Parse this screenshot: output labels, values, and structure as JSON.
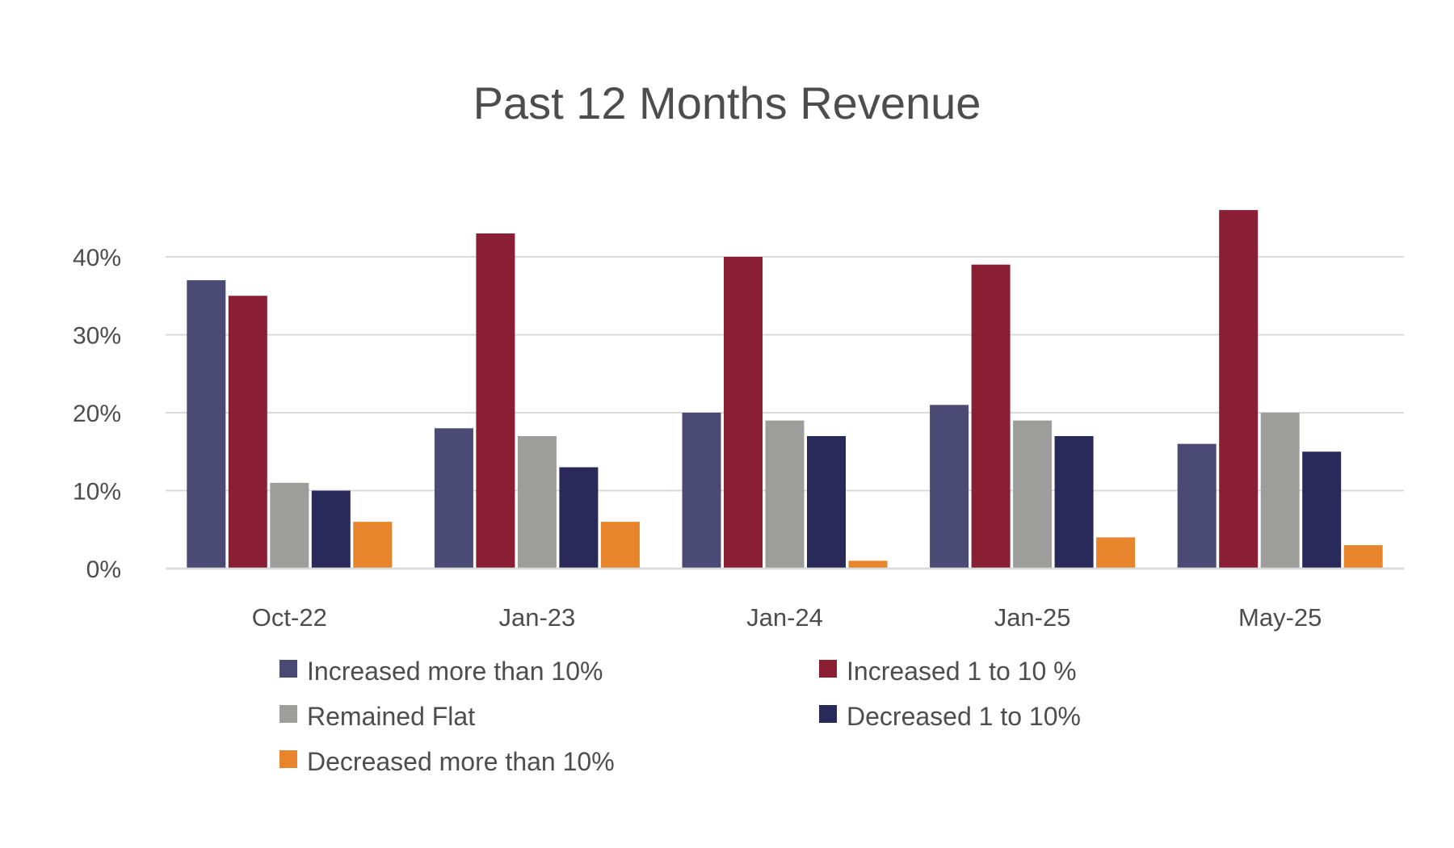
{
  "chart_data": {
    "type": "bar",
    "title": "Past 12 Months Revenue",
    "xlabel": "",
    "ylabel": "",
    "ylim": [
      0,
      45
    ],
    "yticks": [
      0,
      10,
      20,
      30,
      40
    ],
    "ytick_labels": [
      "0%",
      "10%",
      "20%",
      "30%",
      "40%"
    ],
    "grid": true,
    "legend_position": "bottom",
    "categories": [
      "Oct-22",
      "Jan-23",
      "Jan-24",
      "Jan-25",
      "May-25"
    ],
    "series": [
      {
        "name": "Increased more than 10%",
        "color": "#4b4a75",
        "values": [
          37,
          18,
          20,
          21,
          16
        ]
      },
      {
        "name": "Increased 1 to 10 %",
        "color": "#8a1f34",
        "values": [
          35,
          43,
          40,
          39,
          46
        ]
      },
      {
        "name": "Remained Flat",
        "color": "#9d9d9b",
        "values": [
          11,
          17,
          19,
          19,
          20
        ]
      },
      {
        "name": "Decreased 1 to 10%",
        "color": "#2a2a5a",
        "values": [
          10,
          13,
          17,
          17,
          15
        ]
      },
      {
        "name": "Decreased more than 10%",
        "color": "#e8852c",
        "values": [
          6,
          6,
          1,
          4,
          3
        ]
      }
    ]
  }
}
